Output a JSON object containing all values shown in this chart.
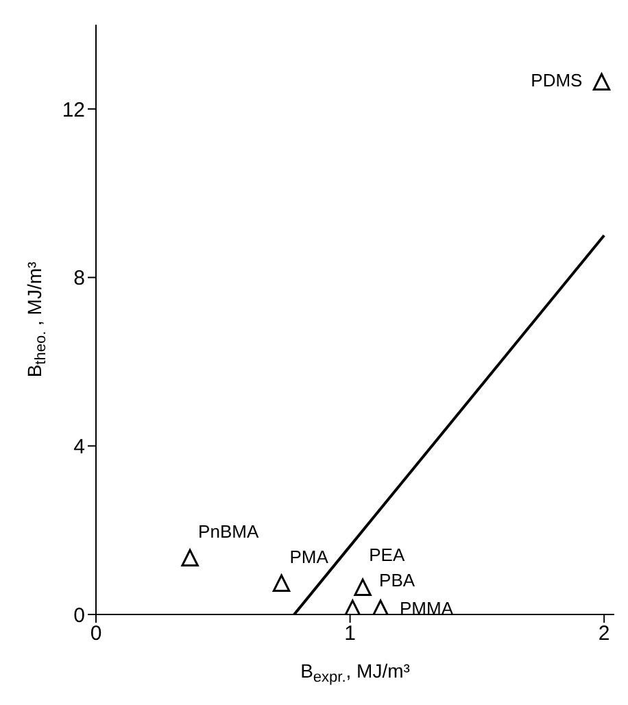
{
  "chart_data": {
    "type": "scatter",
    "xlabel": "B$_{expr.}$,  MJ/m³",
    "ylabel": "B$_{theo.}$ ,  MJ/m³",
    "xlim": [
      0,
      2.04
    ],
    "ylim": [
      0,
      14
    ],
    "xticks": [
      0,
      1,
      2
    ],
    "yticks": [
      0,
      4,
      8,
      12
    ],
    "grid": false,
    "series": [
      {
        "color": "#000000",
        "marker": "triangle",
        "x": [
          0.37,
          0.73,
          1.01,
          1.05,
          1.12,
          1.99
        ],
        "values": [
          1.3,
          0.7,
          0.1,
          0.6,
          0.1,
          12.6
        ]
      },
      {
        "type": "line",
        "marker": "none",
        "color": "#000000",
        "x": [
          0.78,
          2
        ],
        "values": [
          0,
          9.0
        ]
      }
    ],
    "annotations": [
      {
        "text": "PnBMA",
        "x": 0.37,
        "y": 1.3
      },
      {
        "text": "PMA",
        "x": 0.73,
        "y": 0.7
      },
      {
        "text": "PEA",
        "x": 1.01,
        "y": 0.1
      },
      {
        "text": "PBA",
        "x": 1.05,
        "y": 0.6
      },
      {
        "text": "PMMA",
        "x": 1.12,
        "y": 0.1
      },
      {
        "text": "PDMS",
        "x": 1.99,
        "y": 12.6
      }
    ]
  }
}
